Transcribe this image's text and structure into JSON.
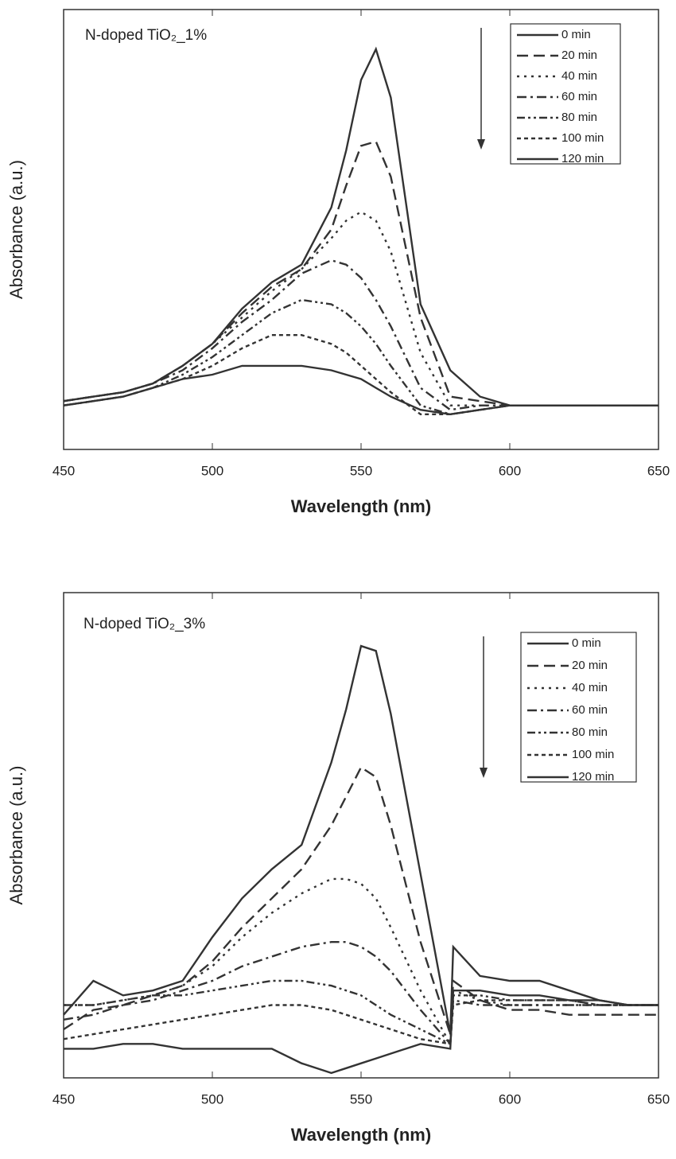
{
  "chart_data": [
    {
      "type": "line",
      "title": "N-doped TiO₂_1%",
      "x_label": "Wavelength (nm)",
      "y_label": "Absorbance (a.u.)",
      "x": [
        450,
        460,
        470,
        480,
        490,
        500,
        510,
        520,
        530,
        540,
        545,
        550,
        555,
        560,
        570,
        580,
        590,
        600,
        610,
        620,
        630,
        640,
        650
      ],
      "xlim": [
        450,
        650
      ],
      "xticks": [
        450,
        500,
        550,
        600,
        650
      ],
      "ylim": [
        0,
        1
      ],
      "series": [
        {
          "name": "0 min",
          "color": "#333333",
          "line_style": "solid",
          "values": [
            0.11,
            0.12,
            0.13,
            0.15,
            0.19,
            0.24,
            0.32,
            0.38,
            0.42,
            0.55,
            0.68,
            0.84,
            0.91,
            0.8,
            0.33,
            0.18,
            0.12,
            0.1,
            0.1,
            0.1,
            0.1,
            0.1,
            0.1
          ]
        },
        {
          "name": "20 min",
          "color": "#333333",
          "line_style": "dashed",
          "values": [
            0.11,
            0.12,
            0.13,
            0.15,
            0.19,
            0.24,
            0.31,
            0.37,
            0.41,
            0.5,
            0.6,
            0.69,
            0.7,
            0.62,
            0.3,
            0.12,
            0.11,
            0.1,
            0.1,
            0.1,
            0.1,
            0.1,
            0.1
          ]
        },
        {
          "name": "40 min",
          "color": "#333333",
          "line_style": "dotted",
          "values": [
            0.11,
            0.12,
            0.13,
            0.15,
            0.19,
            0.24,
            0.3,
            0.36,
            0.41,
            0.48,
            0.52,
            0.54,
            0.52,
            0.45,
            0.22,
            0.1,
            0.1,
            0.1,
            0.1,
            0.1,
            0.1,
            0.1,
            0.1
          ]
        },
        {
          "name": "60 min",
          "color": "#333333",
          "line_style": "dashdot",
          "values": [
            0.11,
            0.12,
            0.13,
            0.15,
            0.18,
            0.23,
            0.29,
            0.34,
            0.4,
            0.43,
            0.42,
            0.39,
            0.34,
            0.28,
            0.14,
            0.09,
            0.1,
            0.1,
            0.1,
            0.1,
            0.1,
            0.1,
            0.1
          ]
        },
        {
          "name": "80 min",
          "color": "#333333",
          "line_style": "dashdotdot",
          "values": [
            0.1,
            0.11,
            0.12,
            0.14,
            0.17,
            0.21,
            0.26,
            0.31,
            0.34,
            0.33,
            0.31,
            0.28,
            0.24,
            0.19,
            0.1,
            0.08,
            0.09,
            0.1,
            0.1,
            0.1,
            0.1,
            0.1,
            0.1
          ]
        },
        {
          "name": "100 min",
          "color": "#333333",
          "line_style": "shortdash",
          "values": [
            0.1,
            0.11,
            0.12,
            0.14,
            0.16,
            0.19,
            0.23,
            0.26,
            0.26,
            0.24,
            0.22,
            0.19,
            0.16,
            0.13,
            0.08,
            0.08,
            0.09,
            0.1,
            0.1,
            0.1,
            0.1,
            0.1,
            0.1
          ]
        },
        {
          "name": "120 min",
          "color": "#333333",
          "line_style": "solid",
          "values": [
            0.1,
            0.11,
            0.12,
            0.14,
            0.16,
            0.17,
            0.19,
            0.19,
            0.19,
            0.18,
            0.17,
            0.16,
            0.14,
            0.12,
            0.09,
            0.08,
            0.09,
            0.1,
            0.1,
            0.1,
            0.1,
            0.1,
            0.1
          ]
        }
      ]
    },
    {
      "type": "line",
      "title": "N-doped TiO₂_3%",
      "x_label": "Wavelength (nm)",
      "y_label": "Absorbance (a.u.)",
      "x": [
        450,
        460,
        470,
        480,
        490,
        500,
        510,
        520,
        530,
        540,
        545,
        550,
        555,
        560,
        570,
        580,
        581,
        590,
        600,
        610,
        620,
        630,
        640,
        650
      ],
      "xlim": [
        450,
        650
      ],
      "xticks": [
        450,
        500,
        550,
        600,
        650
      ],
      "ylim": [
        0,
        1
      ],
      "series": [
        {
          "name": "0 min",
          "color": "#333333",
          "line_style": "solid",
          "values": [
            0.13,
            0.2,
            0.17,
            0.18,
            0.2,
            0.29,
            0.37,
            0.43,
            0.48,
            0.65,
            0.76,
            0.89,
            0.88,
            0.75,
            0.42,
            0.09,
            0.27,
            0.21,
            0.2,
            0.2,
            0.18,
            0.16,
            0.15,
            0.15
          ]
        },
        {
          "name": "20 min",
          "color": "#333333",
          "line_style": "dashed",
          "values": [
            0.1,
            0.14,
            0.15,
            0.17,
            0.19,
            0.24,
            0.31,
            0.37,
            0.43,
            0.52,
            0.58,
            0.64,
            0.62,
            0.52,
            0.28,
            0.09,
            0.2,
            0.16,
            0.14,
            0.14,
            0.13,
            0.13,
            0.13,
            0.13
          ]
        },
        {
          "name": "40 min",
          "color": "#333333",
          "line_style": "dotted",
          "values": [
            0.15,
            0.15,
            0.16,
            0.17,
            0.19,
            0.23,
            0.29,
            0.34,
            0.38,
            0.41,
            0.41,
            0.4,
            0.37,
            0.31,
            0.18,
            0.07,
            0.18,
            0.16,
            0.15,
            0.15,
            0.15,
            0.15,
            0.15,
            0.15
          ]
        },
        {
          "name": "60 min",
          "color": "#333333",
          "line_style": "dashdot",
          "values": [
            0.12,
            0.13,
            0.15,
            0.16,
            0.18,
            0.2,
            0.23,
            0.25,
            0.27,
            0.28,
            0.28,
            0.27,
            0.25,
            0.22,
            0.14,
            0.07,
            0.16,
            0.15,
            0.15,
            0.15,
            0.15,
            0.15,
            0.15,
            0.15
          ]
        },
        {
          "name": "80 min",
          "color": "#333333",
          "line_style": "dashdotdot",
          "values": [
            0.15,
            0.15,
            0.16,
            0.17,
            0.17,
            0.18,
            0.19,
            0.2,
            0.2,
            0.19,
            0.18,
            0.17,
            0.15,
            0.13,
            0.1,
            0.07,
            0.17,
            0.17,
            0.16,
            0.16,
            0.16,
            0.15,
            0.15,
            0.15
          ]
        },
        {
          "name": "100 min",
          "color": "#333333",
          "line_style": "shortdash",
          "values": [
            0.08,
            0.09,
            0.1,
            0.11,
            0.12,
            0.13,
            0.14,
            0.15,
            0.15,
            0.14,
            0.13,
            0.12,
            0.11,
            0.1,
            0.08,
            0.07,
            0.15,
            0.16,
            0.16,
            0.16,
            0.16,
            0.15,
            0.15,
            0.15
          ]
        },
        {
          "name": "120 min",
          "color": "#333333",
          "line_style": "solid",
          "values": [
            0.06,
            0.06,
            0.07,
            0.07,
            0.06,
            0.06,
            0.06,
            0.06,
            0.03,
            0.01,
            0.02,
            0.03,
            0.04,
            0.05,
            0.07,
            0.06,
            0.18,
            0.18,
            0.17,
            0.17,
            0.16,
            0.16,
            0.15,
            0.15
          ]
        }
      ]
    }
  ]
}
